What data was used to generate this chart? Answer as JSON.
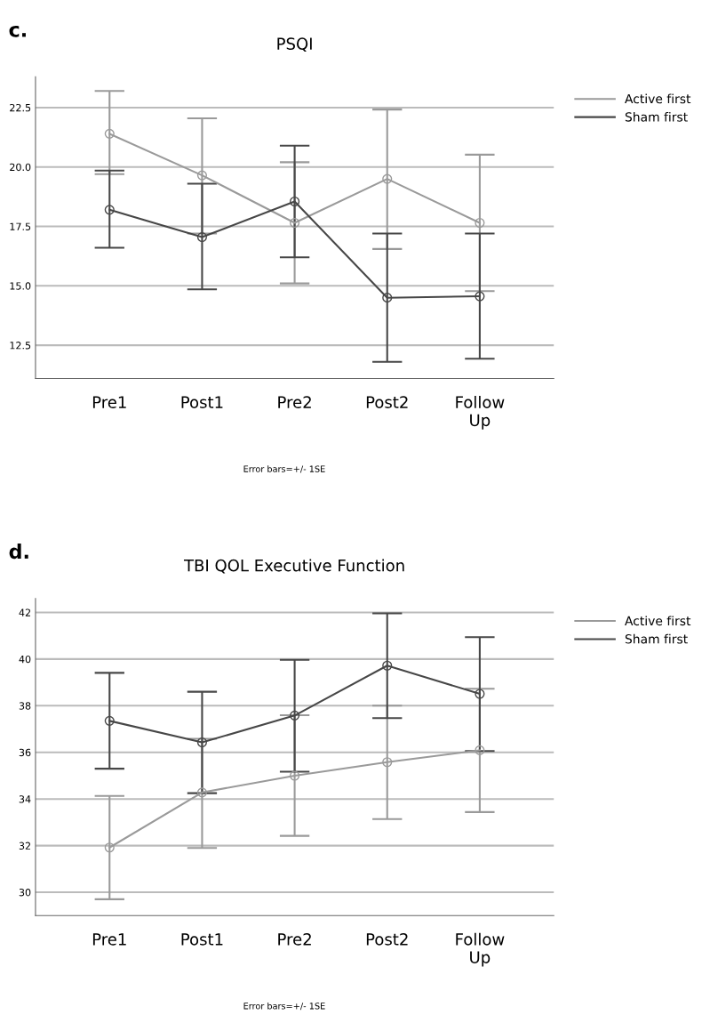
{
  "chart_data": [
    {
      "type": "line",
      "title": "PSQI",
      "categories": [
        "Pre1",
        "Post1",
        "Pre2",
        "Post2",
        "Follow\nUp"
      ],
      "series": [
        {
          "name": "Active first",
          "color": "#9a9a9a",
          "values": [
            21.4,
            19.65,
            17.65,
            19.5,
            17.65
          ],
          "errors": [
            [
              19.7,
              23.2
            ],
            [
              17.2,
              22.05
            ],
            [
              15.1,
              20.2
            ],
            [
              16.55,
              22.42
            ],
            [
              14.78,
              20.52
            ]
          ]
        },
        {
          "name": "Sham first",
          "color": "#474747",
          "values": [
            18.2,
            17.05,
            18.55,
            14.5,
            14.56
          ],
          "errors": [
            [
              16.6,
              19.85
            ],
            [
              14.85,
              19.3
            ],
            [
              16.2,
              20.9
            ],
            [
              11.8,
              17.2
            ],
            [
              11.93,
              17.2
            ]
          ]
        }
      ],
      "ylim": [
        11.1,
        23.8
      ],
      "yticks": [
        {
          "value": 12.5,
          "label": "12.5"
        },
        {
          "value": 15.0,
          "label": "15.0"
        },
        {
          "value": 17.5,
          "label": "17.5"
        },
        {
          "value": 20.0,
          "label": "20.0"
        },
        {
          "value": 22.5,
          "label": "22.5"
        }
      ],
      "grid": "y",
      "legend": "top right",
      "marker": "circle",
      "line_style": "solid",
      "annotations": [
        "c.",
        "Error bars=+/- 1SE"
      ]
    },
    {
      "type": "line",
      "title": "TBI QOL Executive Function",
      "categories": [
        "Pre1",
        "Post1",
        "Pre2",
        "Post2",
        "Follow\nUp"
      ],
      "series": [
        {
          "name": "Active first",
          "color": "#9a9a9a",
          "values": [
            31.92,
            34.28,
            35.0,
            35.58,
            36.09
          ],
          "errors": [
            [
              29.7,
              34.13
            ],
            [
              31.9,
              36.58
            ],
            [
              32.42,
              37.59
            ],
            [
              33.14,
              38.0
            ],
            [
              33.44,
              38.73
            ]
          ]
        },
        {
          "name": "Sham first",
          "color": "#474747",
          "values": [
            37.35,
            36.43,
            37.58,
            39.72,
            38.51
          ],
          "errors": [
            [
              35.3,
              39.41
            ],
            [
              34.25,
              38.6
            ],
            [
              35.17,
              39.97
            ],
            [
              37.47,
              41.96
            ],
            [
              36.06,
              40.94
            ]
          ]
        }
      ],
      "ylim": [
        29.0,
        42.6
      ],
      "yticks": [
        30,
        32,
        34,
        36,
        38,
        40,
        42
      ],
      "grid": "y",
      "legend": "top right",
      "marker": "circle",
      "line_style": "solid",
      "annotations": [
        "d.",
        "Error bars=+/- 1SE"
      ]
    }
  ]
}
